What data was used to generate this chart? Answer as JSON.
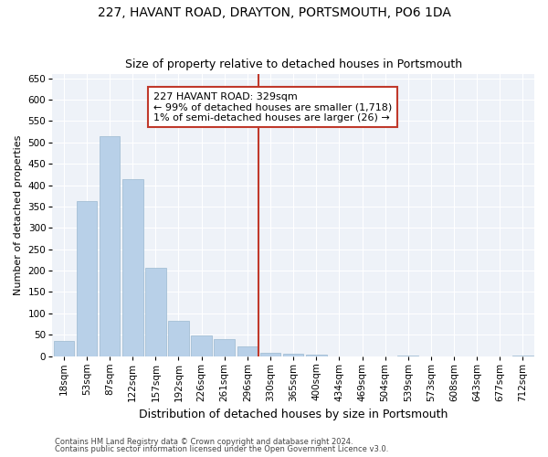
{
  "title": "227, HAVANT ROAD, DRAYTON, PORTSMOUTH, PO6 1DA",
  "subtitle": "Size of property relative to detached houses in Portsmouth",
  "xlabel": "Distribution of detached houses by size in Portsmouth",
  "ylabel": "Number of detached properties",
  "categories": [
    "18sqm",
    "53sqm",
    "87sqm",
    "122sqm",
    "157sqm",
    "192sqm",
    "226sqm",
    "261sqm",
    "296sqm",
    "330sqm",
    "365sqm",
    "400sqm",
    "434sqm",
    "469sqm",
    "504sqm",
    "539sqm",
    "573sqm",
    "608sqm",
    "643sqm",
    "677sqm",
    "712sqm"
  ],
  "values": [
    35,
    363,
    515,
    413,
    207,
    83,
    48,
    40,
    22,
    8,
    5,
    4,
    0,
    0,
    0,
    1,
    0,
    0,
    0,
    0,
    1
  ],
  "bar_color": "#b8d0e8",
  "bar_edge_color": "#9ab8d0",
  "marker_line_color": "#c0392b",
  "annotation_text": "227 HAVANT ROAD: 329sqm\n← 99% of detached houses are smaller (1,718)\n1% of semi-detached houses are larger (26) →",
  "annotation_box_color": "#ffffff",
  "annotation_box_edge_color": "#c0392b",
  "ylim": [
    0,
    660
  ],
  "yticks": [
    0,
    50,
    100,
    150,
    200,
    250,
    300,
    350,
    400,
    450,
    500,
    550,
    600,
    650
  ],
  "background_color": "#eef2f8",
  "grid_color": "#ffffff",
  "footer1": "Contains HM Land Registry data © Crown copyright and database right 2024.",
  "footer2": "Contains public sector information licensed under the Open Government Licence v3.0.",
  "title_fontsize": 10,
  "subtitle_fontsize": 9,
  "ylabel_fontsize": 8,
  "xlabel_fontsize": 9,
  "tick_fontsize": 7.5,
  "annotation_fontsize": 8,
  "footer_fontsize": 6
}
